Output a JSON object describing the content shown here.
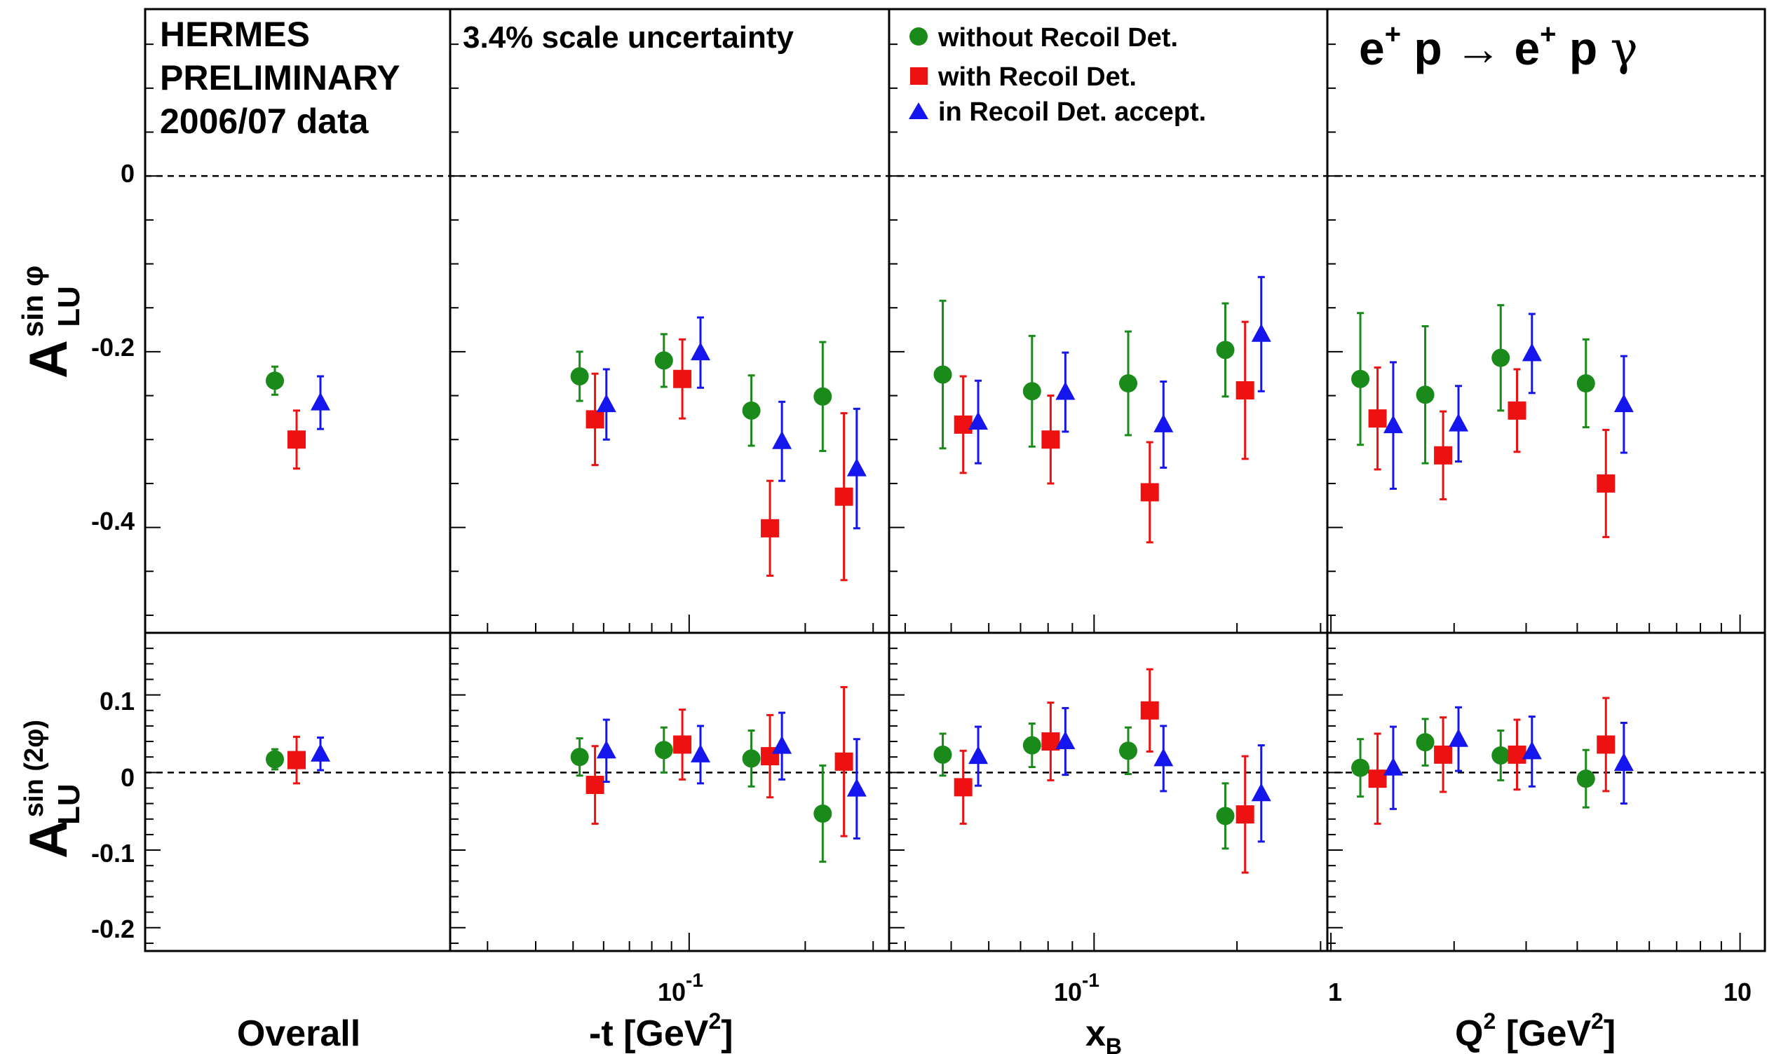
{
  "header": {
    "experiment": "HERMES",
    "status": "PRELIMINARY",
    "dataset": "2006/07 data",
    "scale_uncertainty": "3.4% scale uncertainty",
    "reaction": {
      "beam": "e",
      "beam_charge": "+",
      "target": "p",
      "arrow": "→",
      "out_beam": "e",
      "out_charge": "+",
      "out_target": "p",
      "photon": "γ"
    }
  },
  "legend": [
    {
      "label": "without Recoil Det.",
      "marker": "circle",
      "color": "#1a8a1a"
    },
    {
      "label": "with Recoil Det.",
      "marker": "square",
      "color": "#ee1111"
    },
    {
      "label": "in Recoil Det. accept.",
      "marker": "triangle",
      "color": "#1515ee"
    }
  ],
  "axis_labels": {
    "y_top_main": "A",
    "y_top_sub": "LU",
    "y_top_sup": "sin φ",
    "y_bottom_main": "A",
    "y_bottom_sub": "LU",
    "y_bottom_sup": "sin (2φ)",
    "overall": "Overall",
    "t_main": "-t [GeV",
    "t_sup": "2",
    "t_close": "]",
    "x_main": "x",
    "x_sub": "B",
    "q_main": "Q",
    "q_sup": "2",
    "q_mid": " [GeV",
    "q_sup2": "2",
    "q_close": "]"
  },
  "tick_labels": {
    "top_y": [
      "0",
      "-0.2",
      "-0.4"
    ],
    "bottom_y": [
      "0.1",
      "0",
      "-0.1",
      "-0.2"
    ],
    "t_axis": {
      "base": "10",
      "exp": "-1"
    },
    "x_axis": {
      "base": "10",
      "exp": "-1"
    },
    "q_axis": [
      "1",
      "10"
    ]
  },
  "chart_data": {
    "type": "scatter",
    "title": "",
    "ylim_top": [
      -0.52,
      0.19
    ],
    "ylim_bottom": [
      -0.23,
      0.18
    ],
    "grid": false,
    "reference_line": 0,
    "legend_position": "top-center",
    "panels": [
      {
        "id": "overall",
        "xlabel": "Overall",
        "xscale": "none",
        "series": [
          {
            "name": "without Recoil Det.",
            "x": [
              1
            ],
            "sin_phi": [
              -0.233
            ],
            "sin_phi_err": [
              0.016
            ],
            "sin_2phi": [
              0.017
            ],
            "sin_2phi_err": [
              0.013
            ]
          },
          {
            "name": "with Recoil Det.",
            "x": [
              1
            ],
            "sin_phi": [
              -0.3
            ],
            "sin_phi_err": [
              0.033
            ],
            "sin_2phi": [
              0.016
            ],
            "sin_2phi_err": [
              0.03
            ]
          },
          {
            "name": "in Recoil Det. accept.",
            "x": [
              1
            ],
            "sin_phi": [
              -0.258
            ],
            "sin_phi_err": [
              0.03
            ],
            "sin_2phi": [
              0.024
            ],
            "sin_2phi_err": [
              0.021
            ]
          }
        ]
      },
      {
        "id": "t",
        "xlabel": "-t [GeV^2]",
        "xscale": "log",
        "xlim": [
          0.024,
          0.33
        ],
        "series": [
          {
            "name": "without Recoil Det.",
            "x": [
              0.052,
              0.086,
              0.145,
              0.222
            ],
            "sin_phi": [
              -0.228,
              -0.21,
              -0.267,
              -0.251
            ],
            "sin_phi_err": [
              0.028,
              0.03,
              0.04,
              0.062
            ],
            "sin_2phi": [
              0.02,
              0.029,
              0.018,
              -0.053
            ],
            "sin_2phi_err": [
              0.024,
              0.029,
              0.036,
              0.062
            ]
          },
          {
            "name": "with Recoil Det.",
            "x": [
              0.057,
              0.096,
              0.162,
              0.252
            ],
            "sin_phi": [
              -0.277,
              -0.231,
              -0.401,
              -0.365
            ],
            "sin_phi_err": [
              0.052,
              0.045,
              0.054,
              0.095
            ],
            "sin_2phi": [
              -0.016,
              0.036,
              0.021,
              0.014
            ],
            "sin_2phi_err": [
              0.05,
              0.045,
              0.053,
              0.096
            ]
          },
          {
            "name": "in Recoil Det. accept.",
            "x": [
              0.061,
              0.107,
              0.174,
              0.272
            ],
            "sin_phi": [
              -0.26,
              -0.201,
              -0.302,
              -0.333
            ],
            "sin_phi_err": [
              0.04,
              0.04,
              0.045,
              0.068
            ],
            "sin_2phi": [
              0.028,
              0.023,
              0.034,
              -0.021
            ],
            "sin_2phi_err": [
              0.04,
              0.037,
              0.043,
              0.064
            ]
          }
        ]
      },
      {
        "id": "xB",
        "xlabel": "x_B",
        "xscale": "log",
        "xlim": [
          0.037,
          0.31
        ],
        "series": [
          {
            "name": "without Recoil Det.",
            "x": [
              0.048,
              0.074,
              0.118,
              0.189
            ],
            "sin_phi": [
              -0.226,
              -0.245,
              -0.236,
              -0.198
            ],
            "sin_phi_err": [
              0.084,
              0.063,
              0.059,
              0.053
            ],
            "sin_2phi": [
              0.023,
              0.035,
              0.028,
              -0.056
            ],
            "sin_2phi_err": [
              0.027,
              0.028,
              0.03,
              0.042
            ]
          },
          {
            "name": "with Recoil Det.",
            "x": [
              0.053,
              0.081,
              0.131,
              0.208
            ],
            "sin_phi": [
              -0.283,
              -0.3,
              -0.36,
              -0.244
            ],
            "sin_phi_err": [
              0.055,
              0.05,
              0.057,
              0.078
            ],
            "sin_2phi": [
              -0.019,
              0.04,
              0.08,
              -0.054
            ],
            "sin_2phi_err": [
              0.047,
              0.05,
              0.053,
              0.075
            ]
          },
          {
            "name": "in Recoil Det. accept.",
            "x": [
              0.057,
              0.087,
              0.14,
              0.225
            ],
            "sin_phi": [
              -0.28,
              -0.246,
              -0.283,
              -0.18
            ],
            "sin_phi_err": [
              0.047,
              0.045,
              0.049,
              0.065
            ],
            "sin_2phi": [
              0.021,
              0.04,
              0.018,
              -0.027
            ],
            "sin_2phi_err": [
              0.038,
              0.043,
              0.042,
              0.062
            ]
          }
        ]
      },
      {
        "id": "Q2",
        "xlabel": "Q^2 [GeV^2]",
        "xscale": "log",
        "xlim": [
          0.98,
          11.5
        ],
        "series": [
          {
            "name": "without Recoil Det.",
            "x": [
              1.18,
              1.7,
              2.6,
              4.2
            ],
            "sin_phi": [
              -0.231,
              -0.249,
              -0.207,
              -0.236
            ],
            "sin_phi_err": [
              0.075,
              0.078,
              0.06,
              0.05
            ],
            "sin_2phi": [
              0.006,
              0.039,
              0.022,
              -0.008
            ],
            "sin_2phi_err": [
              0.037,
              0.03,
              0.032,
              0.037
            ]
          },
          {
            "name": "with Recoil Det.",
            "x": [
              1.3,
              1.88,
              2.85,
              4.7
            ],
            "sin_phi": [
              -0.276,
              -0.318,
              -0.267,
              -0.35
            ],
            "sin_phi_err": [
              0.058,
              0.05,
              0.047,
              0.061
            ],
            "sin_2phi": [
              -0.008,
              0.023,
              0.023,
              0.036
            ],
            "sin_2phi_err": [
              0.058,
              0.048,
              0.045,
              0.06
            ]
          },
          {
            "name": "in Recoil Det. accept.",
            "x": [
              1.42,
              2.05,
              3.1,
              5.2
            ],
            "sin_phi": [
              -0.284,
              -0.282,
              -0.202,
              -0.26
            ],
            "sin_phi_err": [
              0.072,
              0.043,
              0.045,
              0.055
            ],
            "sin_2phi": [
              0.006,
              0.043,
              0.027,
              0.012
            ],
            "sin_2phi_err": [
              0.053,
              0.041,
              0.045,
              0.052
            ]
          }
        ]
      }
    ]
  }
}
